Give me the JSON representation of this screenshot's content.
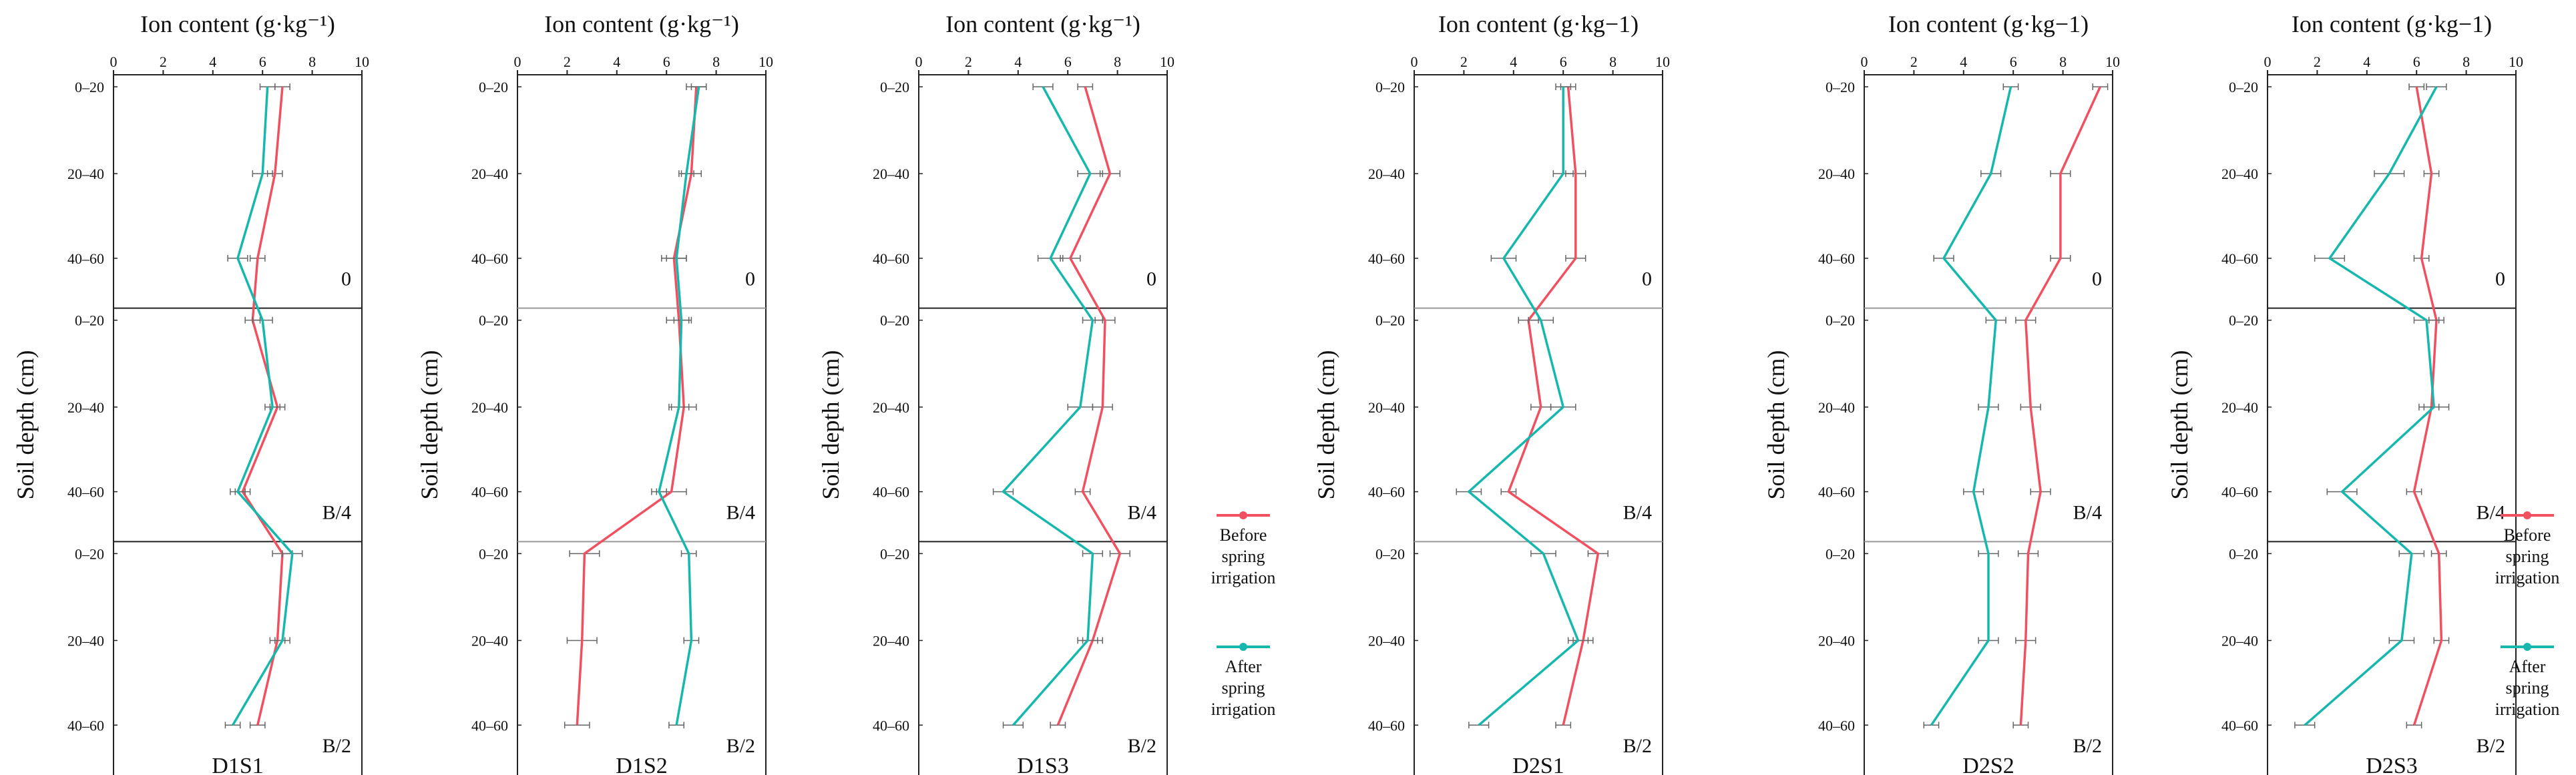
{
  "colors": {
    "before": "#f0505f",
    "after": "#16b8ad",
    "errorbar": "#666666",
    "frame": "#222222",
    "divider": "#999999"
  },
  "chart_data": {
    "type": "line",
    "orientation": "profile",
    "xlabel": "Ion content (g·kg⁻¹)",
    "xlabels_per_panel": [
      "Ion content (g·kg⁻¹)",
      "Ion content (g·kg⁻¹)",
      "Ion content (g·kg⁻¹)",
      "Ion content (g·kg−1)",
      "Ion content (g·kg−1)",
      "Ion content (g·kg−1)"
    ],
    "ylabel": "Soil depth (cm)",
    "xlim": [
      0,
      10
    ],
    "xticks": [
      "0",
      "2",
      "4",
      "6",
      "8",
      "10"
    ],
    "depth_labels": [
      "0–20",
      "20–40",
      "40–60"
    ],
    "segments": [
      "0",
      "B/4",
      "B/2"
    ],
    "series_names": [
      "Before spring irrigation",
      "After spring irrigation"
    ],
    "legend": {
      "before": {
        "line1": "Before",
        "line2": "spring",
        "line3": "irrigation"
      },
      "after": {
        "line1": "After",
        "line2": "spring",
        "line3": "irrigation"
      }
    },
    "panels": [
      {
        "name": "D1S1",
        "before": [
          6.8,
          6.5,
          5.8,
          5.6,
          6.6,
          5.2,
          6.8,
          6.6,
          5.8
        ],
        "after": [
          6.2,
          6.0,
          5.0,
          6.0,
          6.4,
          5.0,
          7.2,
          6.8,
          4.8
        ],
        "before_err": [
          0.3,
          0.3,
          0.3,
          0.3,
          0.3,
          0.3,
          0.4,
          0.3,
          0.3
        ],
        "after_err": [
          0.3,
          0.4,
          0.4,
          0.4,
          0.3,
          0.3,
          0.4,
          0.3,
          0.3
        ]
      },
      {
        "name": "D1S2",
        "before": [
          7.2,
          7.0,
          6.3,
          6.5,
          6.7,
          6.2,
          2.7,
          2.6,
          2.4
        ],
        "after": [
          7.3,
          6.8,
          6.4,
          6.6,
          6.5,
          5.7,
          6.9,
          7.0,
          6.4
        ],
        "before_err": [
          0.4,
          0.4,
          0.5,
          0.5,
          0.5,
          0.6,
          0.6,
          0.6,
          0.5
        ],
        "after_err": [
          0.3,
          0.3,
          0.4,
          0.3,
          0.4,
          0.3,
          0.3,
          0.3,
          0.3
        ]
      },
      {
        "name": "D1S3",
        "before": [
          6.7,
          7.7,
          6.1,
          7.5,
          7.4,
          6.6,
          8.1,
          7.0,
          5.6
        ],
        "after": [
          5.0,
          6.9,
          5.3,
          7.0,
          6.5,
          3.4,
          7.0,
          6.8,
          3.8
        ],
        "before_err": [
          0.3,
          0.4,
          0.4,
          0.4,
          0.4,
          0.3,
          0.4,
          0.4,
          0.3
        ],
        "after_err": [
          0.4,
          0.5,
          0.5,
          0.4,
          0.5,
          0.4,
          0.4,
          0.4,
          0.4
        ]
      },
      {
        "name": "D2S1",
        "before": [
          6.2,
          6.5,
          6.5,
          4.6,
          5.1,
          3.8,
          7.4,
          6.8,
          6.0
        ],
        "after": [
          6.0,
          6.0,
          3.6,
          5.1,
          6.0,
          2.2,
          5.2,
          6.6,
          2.6
        ],
        "before_err": [
          0.3,
          0.4,
          0.4,
          0.4,
          0.4,
          0.3,
          0.4,
          0.4,
          0.3
        ],
        "after_err": [
          0.3,
          0.4,
          0.5,
          0.5,
          0.5,
          0.5,
          0.5,
          0.4,
          0.4
        ]
      },
      {
        "name": "D2S2",
        "before": [
          9.5,
          7.9,
          7.9,
          6.5,
          6.7,
          7.1,
          6.6,
          6.5,
          6.3
        ],
        "after": [
          5.9,
          5.1,
          3.2,
          5.3,
          5.0,
          4.4,
          5.0,
          5.0,
          2.7
        ],
        "before_err": [
          0.3,
          0.4,
          0.4,
          0.4,
          0.4,
          0.4,
          0.4,
          0.4,
          0.3
        ],
        "after_err": [
          0.3,
          0.4,
          0.4,
          0.4,
          0.4,
          0.4,
          0.4,
          0.4,
          0.3
        ]
      },
      {
        "name": "D2S3",
        "before": [
          6.0,
          6.6,
          6.2,
          6.8,
          6.6,
          5.9,
          6.9,
          7.0,
          5.9
        ],
        "after": [
          6.8,
          4.9,
          2.5,
          6.4,
          6.7,
          3.0,
          5.8,
          5.4,
          1.5
        ],
        "before_err": [
          0.3,
          0.3,
          0.3,
          0.3,
          0.3,
          0.3,
          0.3,
          0.3,
          0.3
        ],
        "after_err": [
          0.4,
          0.6,
          0.6,
          0.5,
          0.6,
          0.6,
          0.5,
          0.5,
          0.4
        ]
      }
    ]
  }
}
